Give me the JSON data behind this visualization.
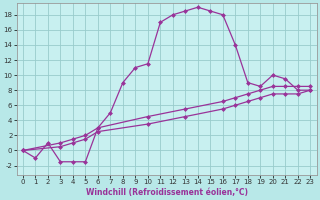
{
  "title": "",
  "xlabel": "Windchill (Refroidissement éolien,°C)",
  "bg_color": "#b8e8e8",
  "plot_bg_color": "#c8f0f0",
  "grid_color": "#99cccc",
  "line_color": "#993399",
  "xlim": [
    -0.5,
    23.5
  ],
  "ylim": [
    -3.2,
    19.5
  ],
  "yticks": [
    -2,
    0,
    2,
    4,
    6,
    8,
    10,
    12,
    14,
    16,
    18
  ],
  "xticks": [
    0,
    1,
    2,
    3,
    4,
    5,
    6,
    7,
    8,
    9,
    10,
    11,
    12,
    13,
    14,
    15,
    16,
    17,
    18,
    19,
    20,
    21,
    22,
    23
  ],
  "line1_x": [
    0,
    1,
    2,
    3,
    4,
    5,
    6,
    7,
    8,
    9,
    10,
    11,
    12,
    13,
    14,
    15,
    16,
    17,
    18,
    19,
    20,
    21,
    22,
    23
  ],
  "line1_y": [
    0,
    -1.0,
    1.0,
    -1.5,
    -1.5,
    -1.5,
    3.0,
    5.0,
    9.0,
    11.0,
    11.5,
    17.0,
    18.0,
    18.5,
    19.0,
    18.5,
    18.0,
    14.0,
    9.0,
    8.5,
    10.0,
    9.5,
    8.0,
    8.0
  ],
  "line2_x": [
    0,
    3,
    4,
    5,
    6,
    10,
    13,
    16,
    17,
    18,
    19,
    20,
    21,
    22,
    23
  ],
  "line2_y": [
    0,
    1.0,
    1.5,
    2.0,
    3.0,
    4.5,
    5.5,
    6.5,
    7.0,
    7.5,
    8.0,
    8.5,
    8.5,
    8.5,
    8.5
  ],
  "line3_x": [
    0,
    3,
    4,
    5,
    6,
    10,
    13,
    16,
    17,
    18,
    19,
    20,
    21,
    22,
    23
  ],
  "line3_y": [
    0,
    0.5,
    1.0,
    1.5,
    2.5,
    3.5,
    4.5,
    5.5,
    6.0,
    6.5,
    7.0,
    7.5,
    7.5,
    7.5,
    8.0
  ],
  "markersize": 2.5,
  "linewidth": 0.9,
  "tick_fontsize": 5.0,
  "xlabel_fontsize": 5.5
}
